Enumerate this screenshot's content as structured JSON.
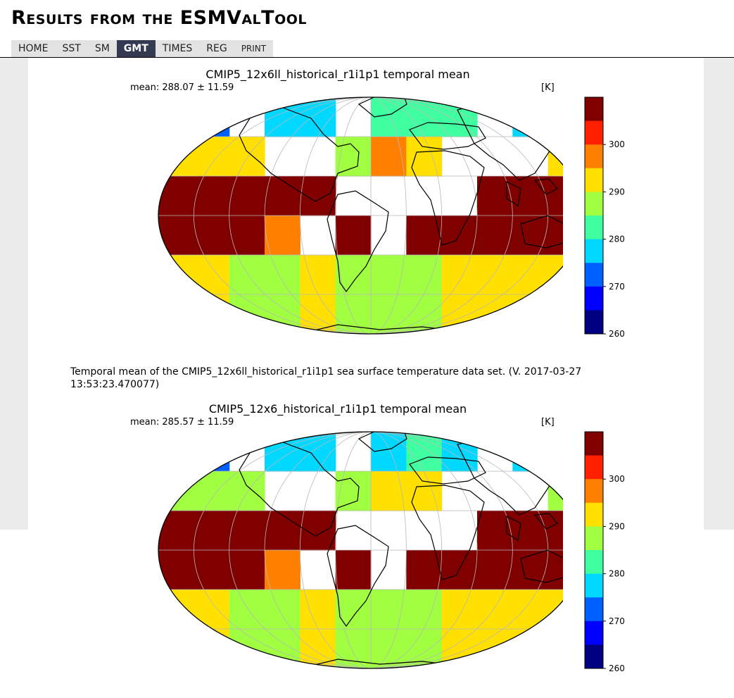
{
  "header": {
    "title": "Results from the ESMValTool"
  },
  "nav": {
    "items": [
      {
        "label": "HOME"
      },
      {
        "label": "SST"
      },
      {
        "label": "SM"
      },
      {
        "label": "GMT"
      },
      {
        "label": "TIMES"
      },
      {
        "label": "REG"
      },
      {
        "label": "PRINT"
      }
    ],
    "active": "GMT"
  },
  "figures": [
    {
      "title": "CMIP5_12x6ll_historical_r1i1p1 temporal mean",
      "mean": "mean: 288.07 ± 11.59",
      "unit": "[K]"
    },
    {
      "title": "CMIP5_12x6_historical_r1i1p1 temporal mean",
      "mean": "mean: 285.57 ± 11.59",
      "unit": "[K]"
    }
  ],
  "caption": "Temporal mean of the CMIP5_12x6ll_historical_r1i1p1 sea surface temperature data set. (V. 2017-03-27 13:53:23.470077)",
  "colorbar": {
    "ticks": [
      "300",
      "290",
      "280",
      "270",
      "260"
    ],
    "colors": [
      "#800000",
      "#ff2000",
      "#ff8000",
      "#ffe000",
      "#a0ff40",
      "#40ffa0",
      "#00d8ff",
      "#0060ff",
      "#0000ff",
      "#000080"
    ]
  },
  "chart_data": [
    {
      "type": "heatmap",
      "title": "CMIP5_12x6ll_historical_r1i1p1 temporal mean",
      "variable": "sea surface temperature",
      "units": "K",
      "mean": 288.07,
      "std": 11.59,
      "colorbar_ticks": [
        260,
        270,
        280,
        290,
        300
      ]
    },
    {
      "type": "heatmap",
      "title": "CMIP5_12x6_historical_r1i1p1 temporal mean",
      "variable": "sea surface temperature",
      "units": "K",
      "mean": 285.57,
      "std": 11.59,
      "colorbar_ticks": [
        260,
        270,
        280,
        290,
        300
      ]
    }
  ]
}
